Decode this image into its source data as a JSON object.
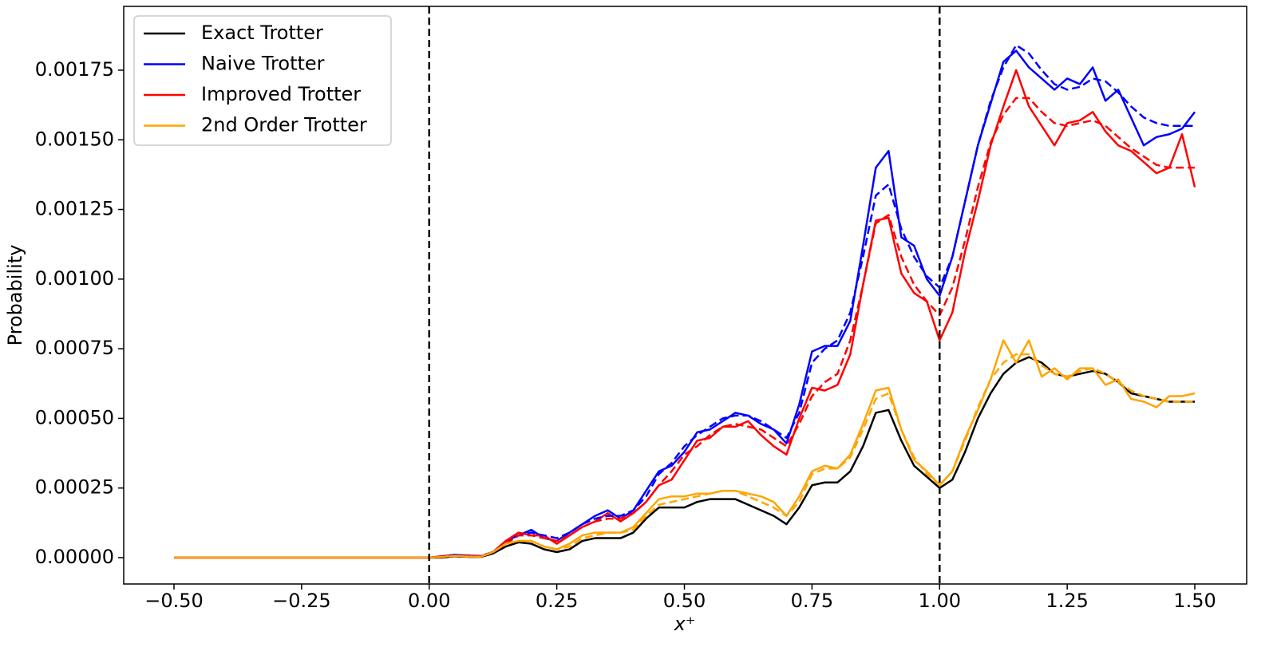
{
  "chart_data": {
    "type": "line",
    "x_label": "x⁺",
    "y_label": "Probability",
    "x": [
      -0.5,
      -0.25,
      0,
      0.025,
      0.05,
      0.075,
      0.1,
      0.125,
      0.15,
      0.175,
      0.2,
      0.225,
      0.25,
      0.275,
      0.3,
      0.325,
      0.35,
      0.375,
      0.4,
      0.425,
      0.45,
      0.475,
      0.5,
      0.525,
      0.55,
      0.575,
      0.6,
      0.625,
      0.65,
      0.675,
      0.7,
      0.725,
      0.75,
      0.775,
      0.8,
      0.825,
      0.85,
      0.875,
      0.9,
      0.925,
      0.95,
      0.975,
      1.0,
      1.025,
      1.05,
      1.075,
      1.1,
      1.125,
      1.15,
      1.175,
      1.2,
      1.225,
      1.25,
      1.275,
      1.3,
      1.325,
      1.35,
      1.375,
      1.4,
      1.425,
      1.45,
      1.475,
      1.5
    ],
    "series": [
      {
        "name": "Exact Trotter",
        "color": "#000000",
        "values": [
          0,
          0,
          0,
          0,
          5e-06,
          3e-06,
          2e-06,
          1.5e-05,
          4e-05,
          5.5e-05,
          5e-05,
          3e-05,
          2e-05,
          3e-05,
          6e-05,
          7e-05,
          7e-05,
          7e-05,
          9e-05,
          0.00014,
          0.00018,
          0.00018,
          0.00018,
          0.0002,
          0.00021,
          0.00021,
          0.00021,
          0.00019,
          0.00017,
          0.00015,
          0.00012,
          0.00018,
          0.00026,
          0.00027,
          0.00027,
          0.00031,
          0.0004,
          0.00052,
          0.00053,
          0.00042,
          0.00033,
          0.00029,
          0.00025,
          0.00028,
          0.00038,
          0.0005,
          0.00059,
          0.00066,
          0.0007,
          0.00072,
          0.0007,
          0.00066,
          0.00065,
          0.00066,
          0.00067,
          0.00066,
          0.00063,
          0.00059,
          0.00058,
          0.00057,
          0.00056,
          0.00056,
          0.00056
        ]
      },
      {
        "name": "Naive Trotter",
        "color": "#0000ff",
        "values": [
          0,
          0,
          0,
          5e-06,
          1e-05,
          8e-06,
          5e-06,
          2e-05,
          6e-05,
          8e-05,
          0.0001,
          7e-05,
          6e-05,
          9e-05,
          0.00012,
          0.00015,
          0.00017,
          0.00014,
          0.00017,
          0.00024,
          0.00031,
          0.00033,
          0.00038,
          0.00045,
          0.00046,
          0.00049,
          0.00052,
          0.00051,
          0.00048,
          0.00046,
          0.00041,
          0.00055,
          0.00074,
          0.00076,
          0.00076,
          0.00085,
          0.00112,
          0.0014,
          0.00146,
          0.00115,
          0.00112,
          0.001,
          0.00094,
          0.00108,
          0.00128,
          0.00148,
          0.00163,
          0.00178,
          0.00182,
          0.00176,
          0.00172,
          0.00168,
          0.00172,
          0.0017,
          0.00176,
          0.00164,
          0.00168,
          0.00158,
          0.00148,
          0.00151,
          0.00152,
          0.00154,
          0.0016
        ]
      },
      {
        "name": "Improved Trotter",
        "color": "#ff0000",
        "values": [
          0,
          0,
          0,
          5e-06,
          8e-06,
          6e-06,
          4e-06,
          2e-05,
          6e-05,
          9e-05,
          8e-05,
          8e-05,
          5e-05,
          8e-05,
          0.00011,
          0.00013,
          0.00016,
          0.00013,
          0.00016,
          0.0002,
          0.00026,
          0.00028,
          0.00035,
          0.00042,
          0.00043,
          0.00047,
          0.00047,
          0.00049,
          0.00044,
          0.0004,
          0.00037,
          0.0005,
          0.00061,
          0.0006,
          0.00062,
          0.00073,
          0.00098,
          0.00121,
          0.00122,
          0.00102,
          0.00095,
          0.00092,
          0.00078,
          0.00088,
          0.0011,
          0.00128,
          0.00148,
          0.00162,
          0.00175,
          0.00162,
          0.00155,
          0.00148,
          0.00156,
          0.00157,
          0.0016,
          0.00153,
          0.00148,
          0.00146,
          0.00142,
          0.00138,
          0.0014,
          0.00152,
          0.00133
        ]
      },
      {
        "name": "2nd Order Trotter",
        "color": "#ffa500",
        "values": [
          0,
          0,
          0,
          3e-06,
          7e-06,
          4e-06,
          3e-06,
          2e-05,
          5e-05,
          6e-05,
          6e-05,
          4e-05,
          3e-05,
          5e-05,
          8e-05,
          9e-05,
          9e-05,
          9e-05,
          0.00011,
          0.00016,
          0.00021,
          0.00022,
          0.00022,
          0.00023,
          0.00023,
          0.00024,
          0.00024,
          0.00023,
          0.00022,
          0.0002,
          0.00015,
          0.00022,
          0.00031,
          0.00033,
          0.00032,
          0.00037,
          0.00048,
          0.0006,
          0.00061,
          0.00046,
          0.00035,
          0.00031,
          0.00026,
          0.00031,
          0.00043,
          0.00053,
          0.00064,
          0.00078,
          0.0007,
          0.00078,
          0.00065,
          0.00068,
          0.00064,
          0.00068,
          0.00068,
          0.00062,
          0.00064,
          0.00057,
          0.00056,
          0.00054,
          0.00058,
          0.00058,
          0.00059
        ]
      },
      {
        "color": "#0000ff",
        "dash": true,
        "values": [
          0,
          0,
          0,
          3e-06,
          8e-06,
          8e-06,
          6e-06,
          2e-05,
          5e-05,
          8e-05,
          9e-05,
          8e-05,
          7e-05,
          9e-05,
          0.00012,
          0.00014,
          0.00015,
          0.00015,
          0.00017,
          0.00022,
          0.0003,
          0.00034,
          0.0004,
          0.00044,
          0.00047,
          0.0005,
          0.00051,
          0.00051,
          0.00049,
          0.00046,
          0.00043,
          0.00052,
          0.0007,
          0.00075,
          0.00078,
          0.00088,
          0.00108,
          0.0013,
          0.00134,
          0.00118,
          0.00108,
          0.00101,
          0.00097,
          0.00108,
          0.00128,
          0.00148,
          0.00164,
          0.00176,
          0.00184,
          0.00181,
          0.00175,
          0.0017,
          0.00168,
          0.00169,
          0.00172,
          0.00171,
          0.00167,
          0.00162,
          0.00158,
          0.00156,
          0.00155,
          0.00155,
          0.00155
        ]
      },
      {
        "color": "#ff0000",
        "dash": true,
        "values": [
          0,
          0,
          0,
          3e-06,
          7e-06,
          7e-06,
          5e-06,
          2e-05,
          5e-05,
          8e-05,
          8e-05,
          7e-05,
          6e-05,
          8e-05,
          0.00011,
          0.00013,
          0.00014,
          0.00014,
          0.00016,
          0.0002,
          0.00026,
          0.00031,
          0.00037,
          0.0004,
          0.00044,
          0.00047,
          0.00048,
          0.00047,
          0.00046,
          0.00043,
          0.0004,
          0.00048,
          0.00058,
          0.00063,
          0.00066,
          0.00078,
          0.00098,
          0.0012,
          0.00123,
          0.00108,
          0.00098,
          0.00092,
          0.00087,
          0.00097,
          0.00114,
          0.00133,
          0.00149,
          0.00159,
          0.00165,
          0.00165,
          0.0016,
          0.00156,
          0.00155,
          0.00156,
          0.00157,
          0.00155,
          0.00151,
          0.00147,
          0.00144,
          0.00141,
          0.0014,
          0.0014,
          0.0014
        ]
      },
      {
        "color": "#ffa500",
        "dash": true,
        "values": [
          0,
          0,
          0,
          2e-06,
          6e-06,
          4e-06,
          3e-06,
          2e-05,
          5e-05,
          6e-05,
          6e-05,
          4e-05,
          3e-05,
          4e-05,
          7e-05,
          8e-05,
          9e-05,
          9e-05,
          0.0001,
          0.00015,
          0.00019,
          0.0002,
          0.00021,
          0.00022,
          0.00023,
          0.00024,
          0.00024,
          0.00022,
          0.0002,
          0.00018,
          0.00015,
          0.0002,
          0.0003,
          0.00032,
          0.00032,
          0.00036,
          0.00046,
          0.00057,
          0.00059,
          0.00046,
          0.00036,
          0.0003,
          0.00026,
          0.00031,
          0.00042,
          0.00054,
          0.00064,
          0.0007,
          0.00073,
          0.00073,
          0.00069,
          0.00066,
          0.00065,
          0.00067,
          0.00068,
          0.00066,
          0.00063,
          0.0006,
          0.00058,
          0.00057,
          0.00056,
          0.00056,
          0.00056
        ]
      }
    ],
    "vlines": [
      0,
      1
    ],
    "xlim": [
      -0.5985,
      1.6016
    ],
    "ylim": [
      -9.45e-05,
      0.001979
    ],
    "xticks": [
      {
        "value": -0.5,
        "label": "−0.50"
      },
      {
        "value": -0.25,
        "label": "−0.25"
      },
      {
        "value": 0,
        "label": "0.00"
      },
      {
        "value": 0.25,
        "label": "0.25"
      },
      {
        "value": 0.5,
        "label": "0.50"
      },
      {
        "value": 0.75,
        "label": "0.75"
      },
      {
        "value": 1,
        "label": "1.00"
      },
      {
        "value": 1.25,
        "label": "1.25"
      },
      {
        "value": 1.5,
        "label": "1.50"
      }
    ],
    "yticks": [
      {
        "value": 0,
        "label": "0.00000"
      },
      {
        "value": 0.00025,
        "label": "0.00025"
      },
      {
        "value": 0.0005,
        "label": "0.00050"
      },
      {
        "value": 0.00075,
        "label": "0.00075"
      },
      {
        "value": 0.001,
        "label": "0.00100"
      },
      {
        "value": 0.00125,
        "label": "0.00125"
      },
      {
        "value": 0.0015,
        "label": "0.00150"
      },
      {
        "value": 0.00175,
        "label": "0.00175"
      }
    ],
    "legend": "upper left"
  }
}
